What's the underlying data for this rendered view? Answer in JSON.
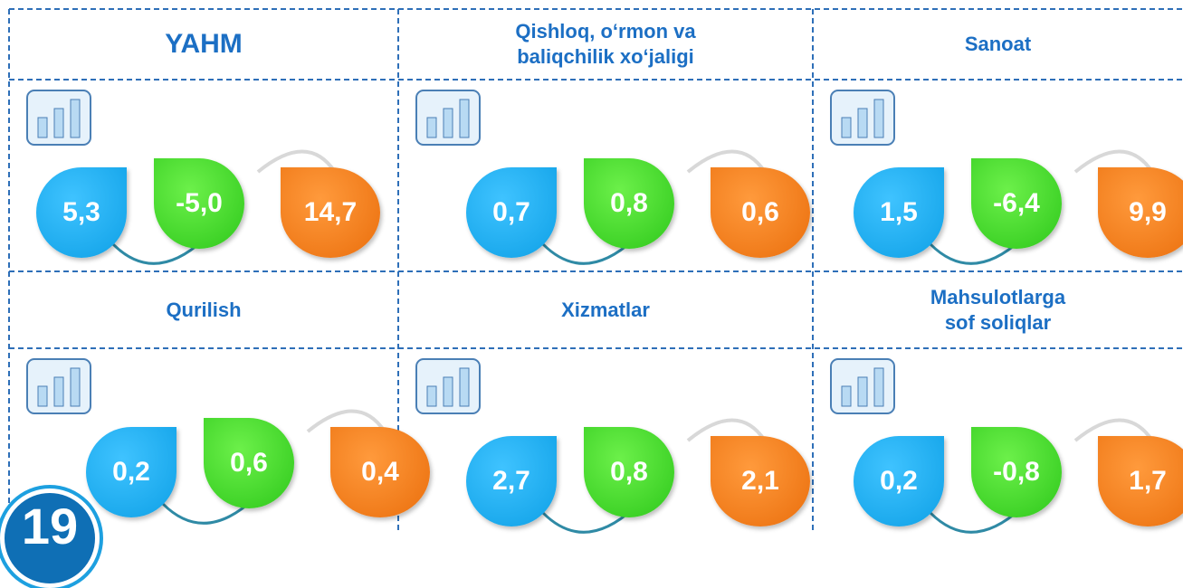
{
  "panels": [
    {
      "title": [
        "YAHM"
      ],
      "values": [
        "5,3",
        "-5,0",
        "14,7"
      ]
    },
    {
      "title": [
        "Qishloq, o‘rmon va",
        "baliqchilik xo‘jaligi"
      ],
      "values": [
        "0,7",
        "0,8",
        "0,6"
      ]
    },
    {
      "title": [
        "Sanoat"
      ],
      "values": [
        "1,5",
        "-6,4",
        "9,9"
      ]
    },
    {
      "title": [
        "Qurilish"
      ],
      "values": [
        "0,2",
        "0,6",
        "0,4"
      ]
    },
    {
      "title": [
        "Xizmatlar"
      ],
      "values": [
        "2,7",
        "0,8",
        "2,1"
      ]
    },
    {
      "title": [
        "Mahsulotlarga",
        "sof soliqlar"
      ],
      "values": [
        "0,2",
        "-0,8",
        "1,7"
      ]
    }
  ],
  "badge": "19"
}
